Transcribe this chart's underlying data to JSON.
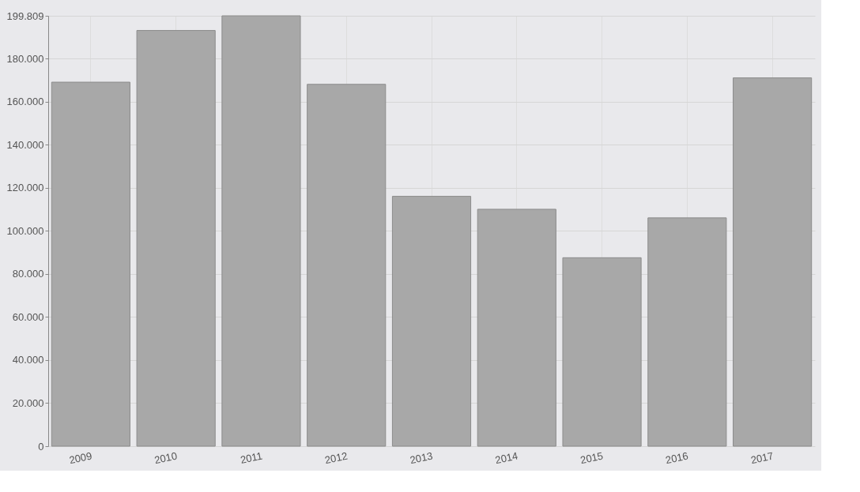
{
  "chart_data": {
    "type": "bar",
    "categories": [
      "2009",
      "2010",
      "2011",
      "2012",
      "2013",
      "2014",
      "2015",
      "2016",
      "2017"
    ],
    "values": [
      169000,
      193000,
      199809,
      168000,
      116000,
      110000,
      87500,
      106000,
      171000
    ],
    "color": "#a8a8a8",
    "ylim": [
      0,
      199809
    ],
    "yticks": [
      0,
      {
        "value": 20000,
        "label": "20.000"
      },
      {
        "value": 40000,
        "label": "40.000"
      },
      {
        "value": 60000,
        "label": "60.000"
      },
      {
        "value": 80000,
        "label": "80.000"
      },
      {
        "value": 100000,
        "label": "100.000"
      },
      {
        "value": 120000,
        "label": "120.000"
      },
      {
        "value": 140000,
        "label": "140.000"
      },
      {
        "value": 160000,
        "label": "160.000"
      },
      {
        "value": 180000,
        "label": "180.000"
      },
      {
        "value": 199809,
        "label": "199.809"
      }
    ],
    "grid": true
  }
}
